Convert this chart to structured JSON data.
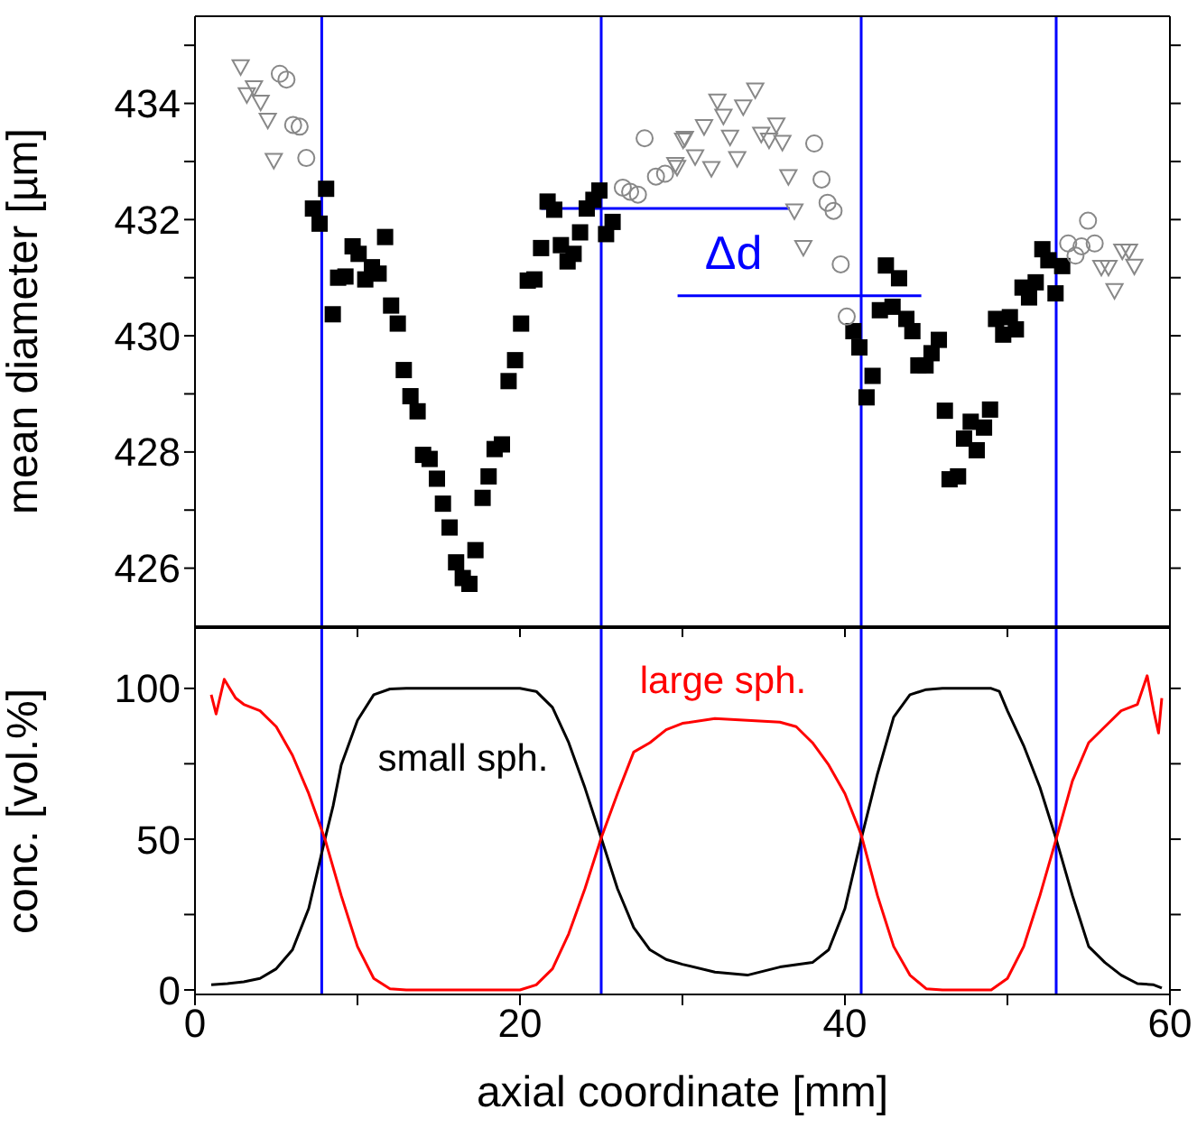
{
  "chart_data": [
    {
      "type": "scatter",
      "ylabel": "mean diameter [µm]",
      "xlim": [
        0,
        60
      ],
      "ylim": [
        425,
        435.5
      ],
      "xticks": [
        0,
        {
          "value": 10,
          "label": null
        },
        20,
        {
          "value": 30,
          "label": null
        },
        40,
        {
          "value": 50,
          "label": null
        },
        60
      ],
      "yticks": [
        426,
        {
          "value": 427,
          "label": null
        },
        428,
        {
          "value": 429,
          "label": null
        },
        430,
        {
          "value": 431,
          "label": null
        },
        432,
        {
          "value": 433,
          "label": null
        },
        434,
        {
          "value": 435,
          "label": null
        }
      ],
      "tick_labels": "y",
      "series": [
        {
          "marker": "square",
          "color": "#000000",
          "x": [
            8.07,
            7.26,
            7.67,
            8.48,
            8.81,
            9.26,
            9.7,
            10.07,
            10.48,
            10.89,
            11.3,
            11.7,
            12.07,
            12.48,
            12.85,
            13.26,
            13.7,
            14.04,
            14.44,
            14.89,
            15.26,
            15.67,
            16.07,
            16.48,
            16.89,
            17.26,
            17.7,
            18.07,
            18.44,
            18.89,
            19.3,
            19.7,
            20.07,
            20.48,
            20.89,
            21.3,
            21.7,
            22.11,
            22.52,
            22.93,
            23.3,
            23.7,
            24.11,
            24.52,
            24.89,
            25.3,
            25.7,
            40.52,
            40.89,
            41.33,
            41.7,
            42.15,
            42.52,
            42.93,
            43.33,
            43.78,
            44.15,
            44.52,
            44.96,
            45.33,
            45.78,
            46.15,
            46.44,
            46.96,
            47.33,
            47.74,
            48.11,
            48.56,
            48.93,
            49.3,
            49.74,
            50.15,
            50.52,
            50.93,
            51.33,
            51.74,
            52.15,
            52.52,
            52.96,
            53.37
          ],
          "values": [
            432.53,
            432.19,
            431.93,
            430.37,
            431.0,
            431.02,
            431.54,
            431.41,
            430.97,
            431.18,
            431.07,
            431.7,
            430.52,
            430.21,
            429.41,
            428.96,
            428.7,
            427.95,
            427.88,
            427.54,
            427.11,
            426.7,
            426.1,
            425.83,
            425.73,
            426.31,
            427.21,
            427.58,
            428.05,
            428.13,
            429.22,
            429.58,
            430.21,
            430.95,
            430.97,
            431.51,
            432.31,
            432.17,
            431.56,
            431.28,
            431.41,
            431.78,
            432.19,
            432.34,
            432.5,
            431.75,
            431.96,
            430.08,
            429.8,
            428.94,
            429.31,
            430.44,
            431.21,
            430.5,
            430.99,
            430.29,
            430.08,
            429.49,
            429.49,
            429.7,
            429.93,
            428.71,
            427.53,
            427.58,
            428.23,
            428.52,
            428.03,
            428.42,
            428.73,
            430.29,
            430.02,
            430.32,
            430.11,
            430.83,
            430.66,
            430.92,
            431.49,
            431.3,
            430.73,
            431.2
          ]
        },
        {
          "marker": "triangle",
          "color": "#888888",
          "x": [
            2.81,
            3.19,
            3.63,
            4.04,
            4.48,
            4.85,
            29.56,
            30.04,
            29.67,
            30.15,
            30.78,
            31.33,
            31.78,
            32.15,
            32.52,
            32.93,
            33.37,
            33.74,
            34.48,
            34.85,
            35.33,
            35.78,
            36.15,
            36.52,
            36.89,
            37.44,
            55.78,
            56.22,
            56.59,
            57.07,
            57.48,
            57.81
          ],
          "values": [
            434.63,
            434.15,
            434.27,
            434.02,
            433.71,
            433.02,
            432.95,
            433.37,
            432.9,
            433.4,
            433.08,
            433.6,
            432.88,
            434.04,
            433.78,
            433.42,
            433.05,
            433.94,
            434.23,
            433.47,
            433.37,
            433.63,
            433.33,
            432.74,
            432.15,
            431.52,
            431.18,
            431.18,
            430.78,
            431.46,
            431.46,
            431.2
          ]
        },
        {
          "marker": "circle",
          "color": "#888888",
          "x": [
            5.22,
            5.63,
            6.04,
            6.44,
            6.85,
            26.33,
            26.78,
            27.26,
            27.67,
            28.37,
            28.93,
            38.11,
            38.56,
            38.93,
            39.3,
            39.74,
            40.11,
            53.74,
            54.19,
            54.56,
            54.96,
            55.37
          ],
          "values": [
            434.51,
            434.41,
            433.63,
            433.6,
            433.06,
            432.55,
            432.48,
            432.43,
            433.4,
            432.74,
            432.79,
            433.31,
            432.69,
            432.29,
            432.15,
            431.23,
            430.33,
            431.59,
            431.38,
            431.54,
            431.98,
            431.59
          ]
        },
        {
          "type": "line",
          "marker": "none",
          "color": "#0000ff",
          "x": [
            21.3,
            36.6
          ],
          "values": [
            432.19,
            432.19
          ]
        },
        {
          "type": "line",
          "marker": "none",
          "color": "#0000ff",
          "x": [
            29.7,
            44.7
          ],
          "values": [
            430.69,
            430.69
          ]
        }
      ],
      "ref_lines": [
        {
          "axis": "x",
          "value": 7.8,
          "color": "#0000ff"
        },
        {
          "axis": "x",
          "value": 25,
          "color": "#0000ff"
        },
        {
          "axis": "x",
          "value": 41,
          "color": "#0000ff"
        },
        {
          "axis": "x",
          "value": 53,
          "color": "#0000ff"
        }
      ],
      "annotations": [
        "Δd"
      ]
    },
    {
      "type": "line",
      "xlabel": "axial coordinate [mm]",
      "ylabel": "conc. [vol.%]",
      "xlim": [
        0,
        60
      ],
      "ylim": [
        -1.5,
        120
      ],
      "xticks": [
        0,
        {
          "value": 10,
          "label": null
        },
        20,
        {
          "value": 30,
          "label": null
        },
        40,
        {
          "value": 50,
          "label": null
        },
        60
      ],
      "yticks": [
        0,
        {
          "value": 25,
          "label": null
        },
        50,
        {
          "value": 75,
          "label": null
        },
        100
      ],
      "line_style": "solid",
      "marker": "none",
      "series": [
        {
          "name": "small sph.",
          "color": "#000000",
          "x": [
            1,
            2,
            3,
            4,
            5,
            6,
            7,
            8,
            8.5,
            9,
            10,
            11,
            12,
            13,
            14,
            15,
            16,
            17,
            18,
            19,
            20,
            21,
            22,
            23,
            24,
            25,
            26,
            27,
            28,
            29,
            30,
            32,
            34,
            36,
            38,
            39,
            40,
            41,
            42,
            43,
            44,
            45,
            46,
            47,
            48,
            49,
            49.5,
            50,
            51,
            52,
            53,
            54,
            55,
            56,
            57,
            58,
            59,
            59.5
          ],
          "values": [
            1.7,
            2.1,
            2.7,
            3.8,
            7,
            13.3,
            27,
            50,
            61,
            74.6,
            89.4,
            97.9,
            99.8,
            100,
            100,
            100,
            100,
            100,
            100,
            100,
            100,
            99,
            93.7,
            82,
            67,
            50.4,
            33.6,
            20.7,
            13.3,
            10.1,
            8.5,
            5.9,
            4.9,
            7.6,
            9.1,
            13.3,
            27,
            50,
            71.6,
            90.5,
            97.9,
            99.6,
            100,
            100,
            100,
            100,
            99,
            92.6,
            81,
            67.2,
            50,
            31.3,
            14.4,
            9.1,
            4.9,
            2.1,
            1.7,
            0.6
          ]
        },
        {
          "name": "large sph.",
          "color": "#ff0000",
          "x": [
            1,
            1.3,
            1.8,
            2.5,
            3,
            4,
            5,
            6,
            7,
            8,
            9,
            10,
            11,
            12,
            13,
            14,
            15,
            16,
            17,
            18,
            19,
            20,
            21,
            22,
            23,
            24,
            25,
            26,
            27,
            28,
            29,
            30,
            32,
            34,
            36,
            37,
            38,
            39,
            40,
            41,
            42,
            43,
            44,
            45,
            46,
            47,
            48,
            49,
            50,
            51,
            52,
            53,
            54,
            55,
            56,
            57,
            58,
            58.6,
            59,
            59.3,
            59.5
          ],
          "values": [
            97.9,
            91.5,
            103,
            96.8,
            94.7,
            92.6,
            87.3,
            77.8,
            65.1,
            50,
            31.3,
            14.4,
            3.8,
            0.4,
            0,
            0,
            0,
            0,
            0,
            0,
            0,
            0,
            1.7,
            7,
            18.6,
            33.6,
            50.4,
            65.1,
            78.9,
            82,
            86.3,
            88.4,
            90,
            89.4,
            88.8,
            87.3,
            82,
            74.6,
            65.1,
            51.5,
            31.3,
            14.4,
            4.9,
            0.4,
            0,
            0,
            0,
            0,
            3.8,
            14.4,
            31.3,
            50,
            69.3,
            82,
            87.3,
            92.6,
            94.7,
            104.2,
            92.6,
            85.2,
            96.8
          ]
        }
      ],
      "ref_lines": [
        {
          "axis": "x",
          "value": 7.8,
          "color": "#0000ff"
        },
        {
          "axis": "x",
          "value": 25,
          "color": "#0000ff"
        },
        {
          "axis": "x",
          "value": 41,
          "color": "#0000ff"
        },
        {
          "axis": "x",
          "value": 53,
          "color": "#0000ff"
        }
      ]
    }
  ]
}
